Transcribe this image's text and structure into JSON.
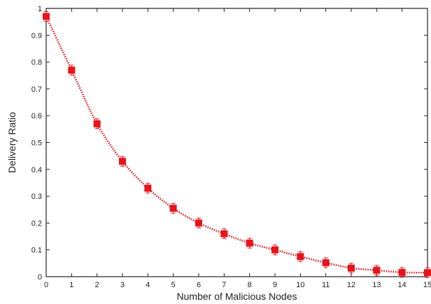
{
  "chart_data": {
    "type": "line",
    "title": "",
    "xlabel": "Number of Malicious Nodes",
    "ylabel": "Delivery Ratio",
    "xlim": [
      0,
      15
    ],
    "ylim": [
      0,
      1
    ],
    "xticks": [
      "0",
      "1",
      "2",
      "3",
      "4",
      "5",
      "6",
      "7",
      "8",
      "9",
      "10",
      "11",
      "12",
      "13",
      "14",
      "15"
    ],
    "yticks": [
      "0",
      "0.1",
      "0.2",
      "0.3",
      "0.4",
      "0.5",
      "0.6",
      "0.7",
      "0.8",
      "0.9",
      "1"
    ],
    "grid": false,
    "legend": "none",
    "series": [
      {
        "color": "#e8141a",
        "line_style": "dotted",
        "marker": "square",
        "error_bars": true,
        "x": [
          0,
          1,
          2,
          3,
          4,
          5,
          6,
          7,
          8,
          9,
          10,
          11,
          12,
          13,
          14,
          15
        ],
        "y": [
          0.97,
          0.77,
          0.57,
          0.43,
          0.33,
          0.255,
          0.2,
          0.16,
          0.125,
          0.1,
          0.075,
          0.052,
          0.032,
          0.024,
          0.016,
          0.015
        ]
      }
    ]
  }
}
